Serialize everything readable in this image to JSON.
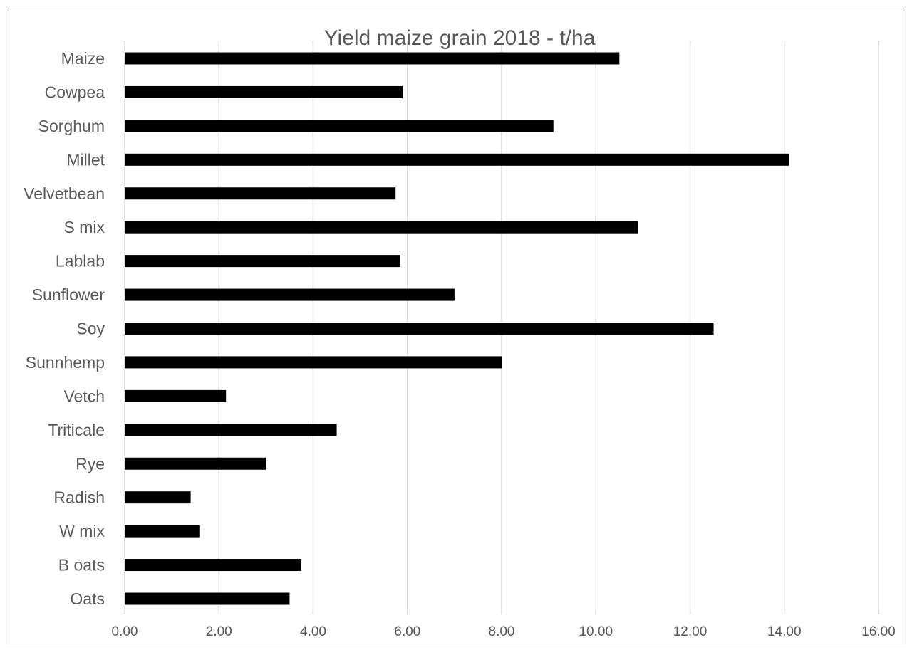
{
  "chart_data": {
    "type": "bar",
    "orientation": "horizontal",
    "title": "Yield maize grain 2018 - t/ha",
    "xlabel": "",
    "ylabel": "",
    "xlim": [
      0,
      16
    ],
    "x_ticks": [
      "0.00",
      "2.00",
      "4.00",
      "6.00",
      "8.00",
      "10.00",
      "12.00",
      "14.00",
      "16.00"
    ],
    "grid": "vertical",
    "bar_color": "#000000",
    "categories": [
      "Maize",
      "Cowpea",
      "Sorghum",
      "Millet",
      "Velvetbean",
      "S mix",
      "Lablab",
      "Sunflower",
      "Soy",
      "Sunnhemp",
      "Vetch",
      "Triticale",
      "Rye",
      "Radish",
      "W mix",
      "B oats",
      "Oats"
    ],
    "values": [
      10.5,
      5.9,
      9.1,
      14.1,
      5.75,
      10.9,
      5.85,
      7.0,
      12.5,
      8.0,
      2.15,
      4.5,
      3.0,
      1.4,
      1.6,
      3.75,
      3.5
    ]
  }
}
